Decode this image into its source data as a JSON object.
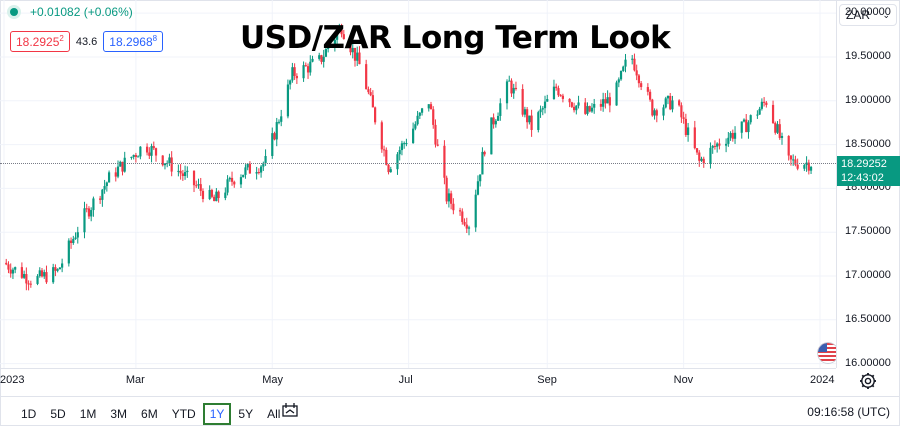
{
  "header": {
    "change": "+0.01082 (+0.06%)",
    "bid": "18.2925",
    "bid_sup": "2",
    "spread": "43.6",
    "ask": "18.2968",
    "ask_sup": "8",
    "title": "USD/ZAR Long Term Look",
    "symbol": "ZAR"
  },
  "price_scale": {
    "ticks": [
      "20.00000",
      "19.50000",
      "19.00000",
      "18.50000",
      "18.00000",
      "17.50000",
      "17.00000",
      "16.50000",
      "16.00000"
    ],
    "last_price": "18.29252",
    "countdown": "12:43:02"
  },
  "time_scale": {
    "ticks": [
      "2023",
      "Mar",
      "May",
      "Jul",
      "Sep",
      "Nov",
      "2024"
    ]
  },
  "bottom_bar": {
    "ranges": [
      "1D",
      "5D",
      "1M",
      "3M",
      "6M",
      "YTD",
      "1Y",
      "5Y",
      "All"
    ],
    "active_range": "1Y",
    "clock": "09:16:58 (UTC)"
  },
  "colors": {
    "up": "#089981",
    "down": "#f23645",
    "accent": "#2962ff"
  },
  "chart_data": {
    "type": "candlestick",
    "ylim": [
      15.95,
      20.15
    ],
    "x_range": [
      "2023-01-01",
      "2024-01-01"
    ],
    "anchors": [
      [
        "2023-01-01",
        17.15
      ],
      [
        "2023-01-14",
        16.95
      ],
      [
        "2023-01-25",
        17.05
      ],
      [
        "2023-02-05",
        17.65
      ],
      [
        "2023-02-18",
        18.15
      ],
      [
        "2023-03-05",
        18.5
      ],
      [
        "2023-03-20",
        18.2
      ],
      [
        "2023-04-05",
        17.85
      ],
      [
        "2023-04-15",
        18.15
      ],
      [
        "2023-04-28",
        18.3
      ],
      [
        "2023-05-10",
        19.3
      ],
      [
        "2023-05-22",
        19.45
      ],
      [
        "2023-06-01",
        19.85
      ],
      [
        "2023-06-10",
        19.35
      ],
      [
        "2023-06-22",
        18.25
      ],
      [
        "2023-07-01",
        18.6
      ],
      [
        "2023-07-10",
        19.0
      ],
      [
        "2023-07-18",
        17.9
      ],
      [
        "2023-07-28",
        17.6
      ],
      [
        "2023-08-05",
        18.6
      ],
      [
        "2023-08-15",
        19.2
      ],
      [
        "2023-08-25",
        18.7
      ],
      [
        "2023-09-05",
        19.15
      ],
      [
        "2023-09-18",
        18.85
      ],
      [
        "2023-10-01",
        19.05
      ],
      [
        "2023-10-08",
        19.55
      ],
      [
        "2023-10-18",
        18.9
      ],
      [
        "2023-10-28",
        19.0
      ],
      [
        "2023-11-08",
        18.3
      ],
      [
        "2023-11-18",
        18.55
      ],
      [
        "2023-11-28",
        18.7
      ],
      [
        "2023-12-08",
        19.0
      ],
      [
        "2023-12-18",
        18.3
      ],
      [
        "2023-12-28",
        18.29
      ]
    ],
    "last": 18.29252
  }
}
